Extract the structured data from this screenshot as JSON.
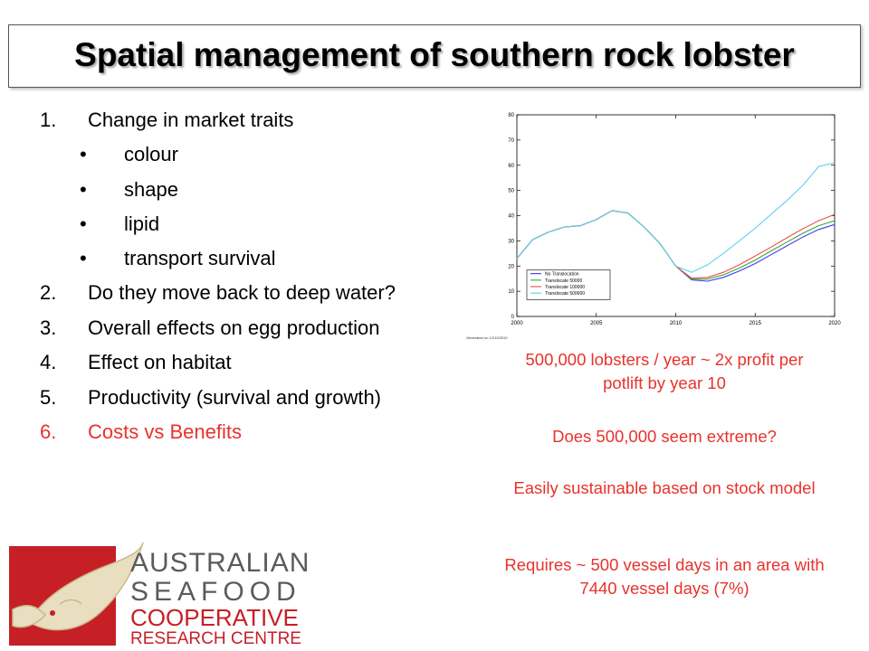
{
  "slide": {
    "title": "Spatial management of southern rock lobster"
  },
  "list": [
    {
      "num": "1.",
      "text": "Change in market traits"
    },
    {
      "bullet": "•",
      "text": "colour"
    },
    {
      "bullet": "•",
      "text": "shape"
    },
    {
      "bullet": "•",
      "text": "lipid"
    },
    {
      "bullet": "•",
      "text": "transport survival"
    },
    {
      "num": "2.",
      "text": "Do they move back to deep water?"
    },
    {
      "num": "3.",
      "text": "Overall effects on egg production"
    },
    {
      "num": "4.",
      "text": "Effect on habitat"
    },
    {
      "num": "5.",
      "text": "Productivity (survival and growth)"
    },
    {
      "num": "6.",
      "text": "Costs vs Benefits"
    }
  ],
  "notes": [
    "500,000 lobsters / year ~ 2x profit per potlift by year 10",
    "Does 500,000 seem extreme?",
    "Easily sustainable based on stock model",
    "Requires ~ 500 vessel days in an area with 7440 vessel days (7%)"
  ],
  "colors": {
    "accent_red": "#e8322b",
    "logo_red": "#c62026",
    "logo_gray": "#5b5b5b",
    "series_blue": "#3a3aef",
    "series_green": "#3aa63a",
    "series_red": "#e8504a",
    "series_cyan": "#5fd3ea"
  },
  "logo": {
    "line1": "AUSTRALIAN",
    "line2": "SEAFOOD",
    "line3": "COOPERATIVE",
    "line4": "RESEARCH CENTRE",
    "icon": "fish-logo-icon"
  },
  "chart_data": {
    "type": "line",
    "xlim": [
      2000,
      2020
    ],
    "ylim": [
      0,
      80
    ],
    "x_ticks": [
      "2000",
      "2005",
      "2010",
      "2015",
      "2020"
    ],
    "y_ticks": [
      "0",
      "10",
      "20",
      "30",
      "40",
      "50",
      "60",
      "70",
      "80"
    ],
    "footnote": "Generated on 12/10/2010",
    "legend_position": "lower-left",
    "series": [
      {
        "name": "No Translocation",
        "color": "#3a3aef",
        "x": [
          2000,
          2001,
          2002,
          2003,
          2004,
          2005,
          2006,
          2007,
          2008,
          2009,
          2010,
          2011,
          2012,
          2013,
          2014,
          2015,
          2016,
          2017,
          2018,
          2019,
          2020
        ],
        "y": [
          23,
          30.5,
          33.5,
          35.5,
          36,
          38.5,
          42,
          41,
          35.5,
          29,
          20,
          14.5,
          14,
          15.5,
          18,
          21,
          24.5,
          28,
          31.5,
          34.5,
          36.5
        ]
      },
      {
        "name": "Translocate 50000",
        "color": "#3aa63a",
        "x": [
          2000,
          2001,
          2002,
          2003,
          2004,
          2005,
          2006,
          2007,
          2008,
          2009,
          2010,
          2011,
          2012,
          2013,
          2014,
          2015,
          2016,
          2017,
          2018,
          2019,
          2020
        ],
        "y": [
          23,
          30.5,
          33.5,
          35.5,
          36,
          38.5,
          42,
          41,
          35.5,
          29,
          20,
          14.8,
          14.8,
          16.5,
          19.2,
          22.4,
          26,
          29.5,
          33,
          36,
          38
        ]
      },
      {
        "name": "Translocate 100000",
        "color": "#e8504a",
        "x": [
          2000,
          2001,
          2002,
          2003,
          2004,
          2005,
          2006,
          2007,
          2008,
          2009,
          2010,
          2011,
          2012,
          2013,
          2014,
          2015,
          2016,
          2017,
          2018,
          2019,
          2020
        ],
        "y": [
          23,
          30.5,
          33.5,
          35.5,
          36,
          38.5,
          42,
          41,
          35.5,
          29,
          20,
          15.2,
          15.5,
          17.5,
          20.5,
          24,
          27.5,
          31.2,
          34.8,
          38,
          40.5
        ]
      },
      {
        "name": "Translocate 500000",
        "color": "#5fd3ea",
        "x": [
          2000,
          2001,
          2002,
          2003,
          2004,
          2005,
          2006,
          2007,
          2008,
          2009,
          2010,
          2011,
          2012,
          2013,
          2014,
          2015,
          2016,
          2017,
          2018,
          2019,
          2020
        ],
        "y": [
          23,
          30.5,
          33.5,
          35.5,
          36,
          38.5,
          42,
          41,
          35.5,
          29,
          20,
          17.5,
          20.5,
          25,
          30,
          35,
          40.5,
          46,
          52,
          59.5,
          61
        ]
      }
    ]
  }
}
